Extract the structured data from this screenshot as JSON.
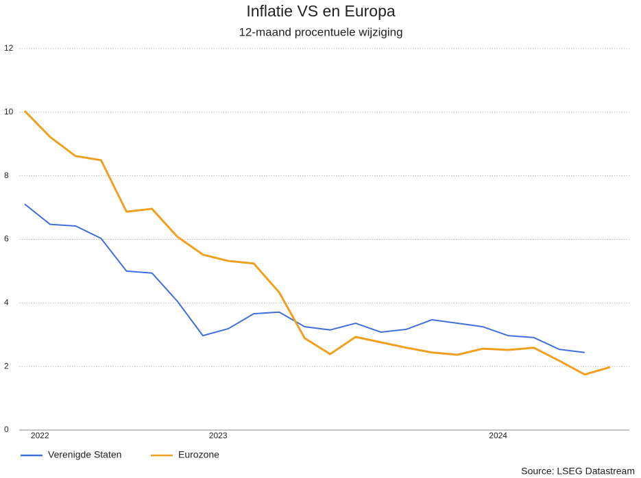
{
  "chart_data": {
    "type": "line",
    "title": "Inflatie VS en Europa",
    "subtitle": "12-maand procentuele wijziging",
    "source": "Source: LSEG Datastream",
    "categories": [
      "2022",
      null,
      null,
      null,
      null,
      null,
      null,
      "2023",
      null,
      null,
      null,
      null,
      null,
      null,
      null,
      null,
      null,
      null,
      "2024",
      null,
      null,
      null,
      null,
      null
    ],
    "series": [
      {
        "name": "Verenigde Staten",
        "color": "#3f6fdc",
        "values": [
          7.11,
          6.47,
          6.42,
          6.03,
          5.0,
          4.94,
          4.05,
          2.97,
          3.19,
          3.66,
          3.71,
          3.25,
          3.15,
          3.36,
          3.08,
          3.17,
          3.47,
          3.36,
          3.25,
          2.97,
          2.91,
          2.54,
          2.44,
          null
        ]
      },
      {
        "name": "Eurozone",
        "color": "#f0a01e",
        "values": [
          10.04,
          9.22,
          8.62,
          8.49,
          6.87,
          6.96,
          6.08,
          5.52,
          5.32,
          5.24,
          4.33,
          2.89,
          2.39,
          2.93,
          2.76,
          2.59,
          2.44,
          2.37,
          2.56,
          2.52,
          2.59,
          2.18,
          1.75,
          1.98
        ]
      }
    ],
    "ylim": [
      0,
      12
    ],
    "yticks": [
      0,
      2,
      4,
      6,
      8,
      10,
      12
    ],
    "grid": true,
    "legend": "bottom-left"
  }
}
